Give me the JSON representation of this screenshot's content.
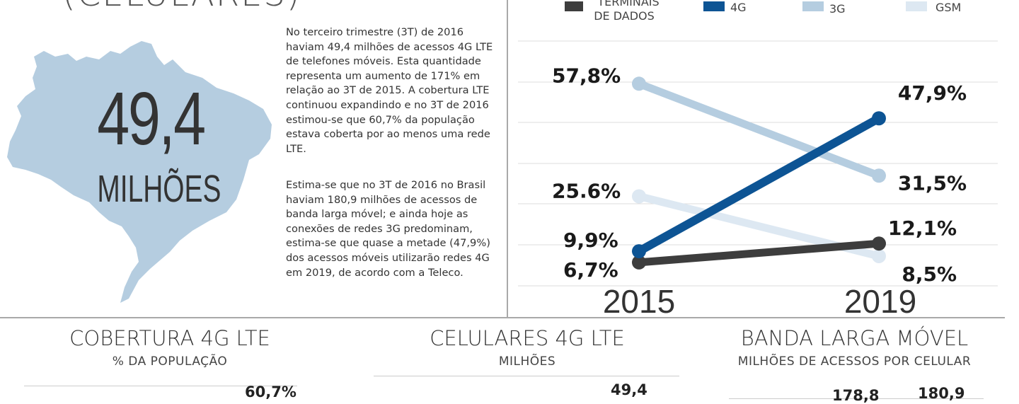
{
  "headline": {
    "title": "(CELULARES)",
    "big_number": "49,4",
    "big_unit": "MILHÕES"
  },
  "paragraphs": [
    "No terceiro trimestre (3T) de 2016 haviam 49,4 milhões de acessos 4G LTE de telefones móveis. Esta quantidade representa um aumento de 171% em relação ao 3T de 2015. A cobertura LTE continuou expandindo e no 3T de 2016 estimou-se que 60,7% da população estava coberta por ao menos uma rede LTE.",
    "Estima-se que no 3T de 2016 no Brasil haviam 180,9 milhões de acessos de banda larga móvel; e ainda hoje as conexões de redes 3G predominam, estima-se que quase a metade (47,9%) dos acessos móveis utilizarão redes 4G em 2019, de acordo com a Teleco."
  ],
  "colors": {
    "map": "#b5cde0",
    "terminais": "#3d3d3d",
    "g4": "#0d5494",
    "g3": "#b5cde0",
    "gsm": "#dde8f2",
    "gridline": "#dcdcdc",
    "divider": "#a9a9a9"
  },
  "chart_data": [
    {
      "type": "line",
      "x": [
        "2015",
        "2019"
      ],
      "ylim": [
        0,
        70
      ],
      "grid": true,
      "legend_position": "top",
      "series": [
        {
          "name": "TERMINAIS DE DADOS",
          "values": [
            6.7,
            12.1
          ],
          "labels": [
            "6,7%",
            "12,1%"
          ],
          "color": "#3d3d3d"
        },
        {
          "name": "4G",
          "values": [
            9.9,
            47.9
          ],
          "labels": [
            "9,9%",
            "47,9%"
          ],
          "color": "#0d5494"
        },
        {
          "name": "3G",
          "values": [
            57.8,
            31.5
          ],
          "labels": [
            "57,8%",
            "31,5%"
          ],
          "color": "#b5cde0"
        },
        {
          "name": "GSM",
          "values": [
            25.6,
            8.5
          ],
          "labels": [
            "25.6%",
            "8,5%"
          ],
          "color": "#dde8f2"
        }
      ],
      "legend_line1_terminais": "TERMINAIS",
      "legend_line2_terminais": "DE DADOS"
    },
    {
      "type": "bar",
      "title": "COBERTURA 4G LTE",
      "subtitle": "% DA POPULAÇÃO",
      "visible_values": [
        "60,7%"
      ]
    },
    {
      "type": "bar",
      "title": "CELULARES 4G LTE",
      "subtitle": "MILHÕES",
      "visible_values": [
        "49,4"
      ]
    },
    {
      "type": "bar",
      "title": "BANDA LARGA MÓVEL",
      "subtitle": "MILHÕES DE ACESSOS POR CELULAR",
      "visible_values": [
        "178,8",
        "180,9"
      ]
    }
  ]
}
